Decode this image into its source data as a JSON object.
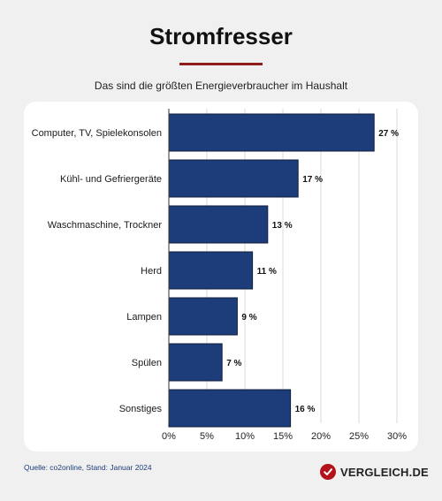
{
  "header": {
    "title": "Stromfresser",
    "subtitle": "Das sind die größten Energieverbraucher im Haushalt"
  },
  "footer": {
    "source": "Quelle: co2online, Stand: Januar 2024",
    "brand": "VERGLEICH.DE"
  },
  "colors": {
    "bar": "#1c3d7a",
    "accent": "#8e1b1b",
    "brand_red": "#b3121b"
  },
  "chart_data": {
    "type": "bar",
    "orientation": "horizontal",
    "categories": [
      "Computer, TV, Spielekonsolen",
      "Kühl- und Gefriergeräte",
      "Waschmaschine, Trockner",
      "Herd",
      "Lampen",
      "Spülen",
      "Sonstiges"
    ],
    "values": [
      27,
      17,
      13,
      11,
      9,
      7,
      16
    ],
    "value_labels": [
      "27 %",
      "17 %",
      "13 %",
      "11 %",
      "9 %",
      "7 %",
      "16 %"
    ],
    "xlim": [
      0,
      30
    ],
    "x_ticks": [
      0,
      5,
      10,
      15,
      20,
      25,
      30
    ],
    "x_tick_labels": [
      "0%",
      "5%",
      "10%",
      "15%",
      "20%",
      "25%",
      "30%"
    ],
    "grid": "vertical",
    "legend": "none"
  }
}
